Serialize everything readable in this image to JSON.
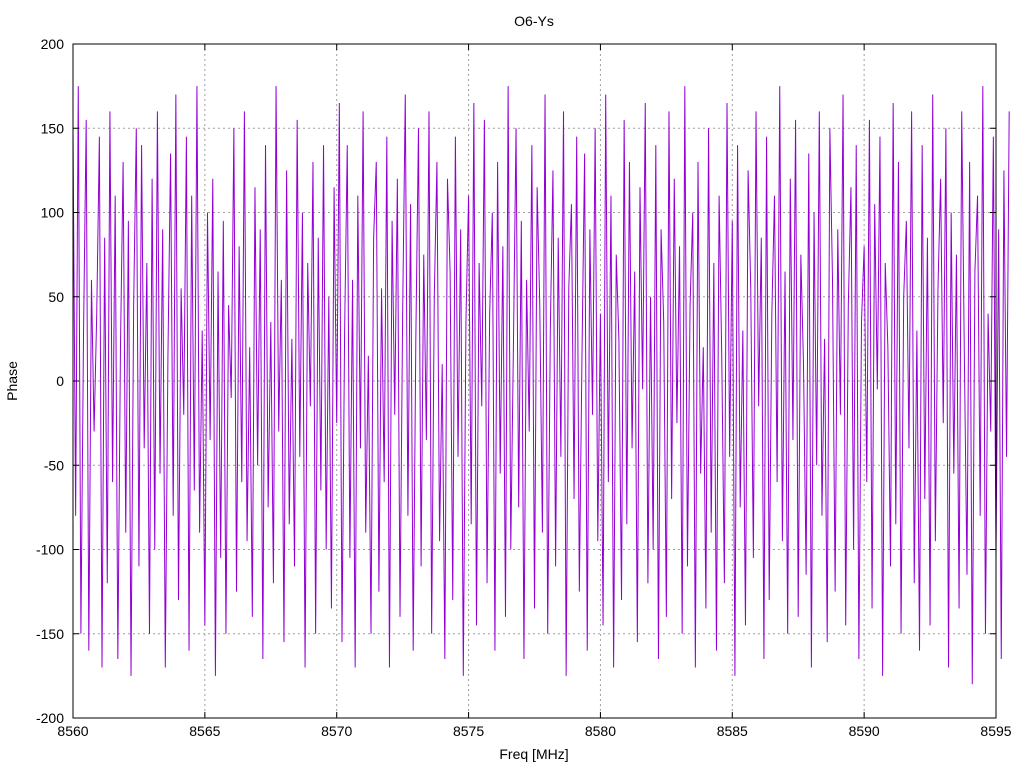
{
  "chart_data": {
    "type": "line",
    "title": "O6-Ys",
    "xlabel": "Freq [MHz]",
    "ylabel": "Phase",
    "xlim": [
      8560,
      8595
    ],
    "ylim": [
      -200,
      200
    ],
    "xticks": [
      8560,
      8565,
      8570,
      8575,
      8580,
      8585,
      8590,
      8595
    ],
    "yticks": [
      -200,
      -150,
      -100,
      -50,
      0,
      50,
      100,
      150,
      200
    ],
    "grid": true,
    "legend": "none",
    "series": [
      {
        "color": "#9400d3",
        "x_start": 8560.0,
        "x_step": 0.1,
        "values": [
          150,
          -80,
          175,
          -150,
          30,
          155,
          -160,
          60,
          -30,
          40,
          145,
          -170,
          85,
          -120,
          160,
          -60,
          110,
          -165,
          20,
          130,
          -90,
          95,
          -175,
          45,
          150,
          -110,
          140,
          -40,
          70,
          -150,
          120,
          -100,
          160,
          -55,
          90,
          -170,
          15,
          135,
          -80,
          170,
          -130,
          55,
          -20,
          145,
          -160,
          110,
          -65,
          175,
          -90,
          30,
          -145,
          100,
          -35,
          120,
          -175,
          65,
          -105,
          95,
          -150,
          45,
          -10,
          150,
          -125,
          80,
          -60,
          160,
          -95,
          20,
          -140,
          115,
          -50,
          90,
          -165,
          140,
          -75,
          35,
          -120,
          175,
          -30,
          60,
          -155,
          125,
          -85,
          25,
          -110,
          155,
          -45,
          100,
          -170,
          70,
          -15,
          130,
          -150,
          85,
          -65,
          140,
          -100,
          50,
          -135,
          115,
          -25,
          165,
          -155,
          30,
          140,
          -105,
          60,
          -170,
          110,
          -40,
          160,
          -90,
          15,
          -150,
          85,
          130,
          -125,
          55,
          -60,
          145,
          -170,
          95,
          -20,
          120,
          -140,
          40,
          170,
          -80,
          105,
          -160,
          25,
          150,
          -110,
          75,
          -35,
          160,
          -150,
          50,
          130,
          -95,
          10,
          -165,
          120,
          65,
          -130,
          145,
          -45,
          90,
          -175,
          35,
          110,
          -85,
          165,
          -145,
          70,
          -15,
          155,
          -120,
          40,
          100,
          -160,
          130,
          -55,
          80,
          -140,
          175,
          -100,
          20,
          150,
          -75,
          95,
          -165,
          60,
          -30,
          140,
          -135,
          115,
          45,
          -90,
          170,
          -150,
          30,
          125,
          -110,
          85,
          -45,
          160,
          -175,
          55,
          105,
          -70,
          145,
          -125,
          15,
          135,
          -160,
          90,
          -20,
          150,
          -95,
          40,
          -145,
          170,
          -60,
          110,
          -170,
          75,
          25,
          -130,
          155,
          -85,
          130,
          -40,
          65,
          -155,
          115,
          -5,
          165,
          -120,
          50,
          -100,
          140,
          -165,
          90,
          35,
          -140,
          160,
          -70,
          120,
          -25,
          80,
          -150,
          175,
          -110,
          45,
          100,
          -170,
          130,
          -55,
          20,
          -135,
          150,
          -90,
          70,
          -160,
          110,
          15,
          -120,
          165,
          -45,
          95,
          -175,
          140,
          -75,
          30,
          -145,
          125,
          55,
          -105,
          160,
          -15,
          85,
          -165,
          145,
          -130,
          40,
          110,
          -60,
          175,
          -95,
          65,
          -150,
          120,
          -35,
          155,
          -140,
          75,
          10,
          -115,
          135,
          -170,
          100,
          -50,
          160,
          -80,
          25,
          -155,
          150,
          60,
          -125,
          90,
          -20,
          170,
          -145,
          45,
          115,
          -100,
          140,
          -165,
          35,
          80,
          -60,
          155,
          -135,
          105,
          -5,
          145,
          -175,
          70,
          20,
          -110,
          165,
          -85,
          130,
          -150,
          50,
          95,
          -40,
          160,
          -120,
          30,
          -160,
          140,
          -70,
          85,
          -145,
          170,
          -95,
          55,
          120,
          -25,
          150,
          -170,
          100,
          -55,
          75,
          -135,
          160,
          15,
          -115,
          130,
          -180,
          65,
          110,
          -80,
          175,
          -150,
          40,
          -30,
          145,
          -105,
          90,
          -165,
          125,
          -45,
          160
        ]
      }
    ]
  }
}
